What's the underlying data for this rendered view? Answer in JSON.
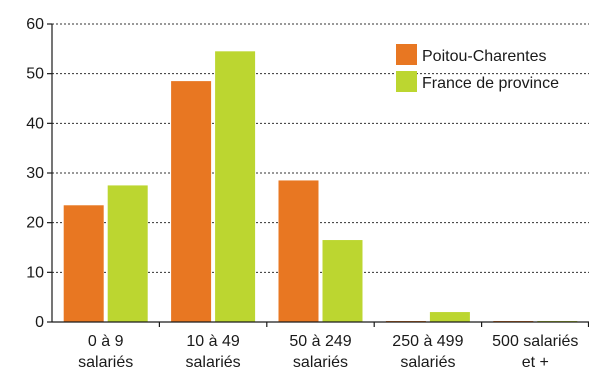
{
  "chart_data": {
    "type": "bar",
    "categories": [
      [
        "0 à 9",
        "salariés"
      ],
      [
        "10 à 49",
        "salariés"
      ],
      [
        "50 à 249",
        "salariés"
      ],
      [
        "250 à 499",
        "salariés"
      ],
      [
        "500 salariés",
        "et +"
      ]
    ],
    "series": [
      {
        "name": "Poitou-Charentes",
        "color": "#e87722",
        "values": [
          23.5,
          48.5,
          28.5,
          0.2,
          0.2
        ]
      },
      {
        "name": "France de province",
        "color": "#bcd630",
        "values": [
          27.5,
          54.5,
          16.5,
          2.0,
          0.2
        ]
      }
    ],
    "ylim": [
      0,
      60
    ],
    "yticks": [
      0,
      10,
      20,
      30,
      40,
      50,
      60
    ],
    "grid": true,
    "legend_position": "top-right",
    "title": "",
    "xlabel": "",
    "ylabel": ""
  }
}
